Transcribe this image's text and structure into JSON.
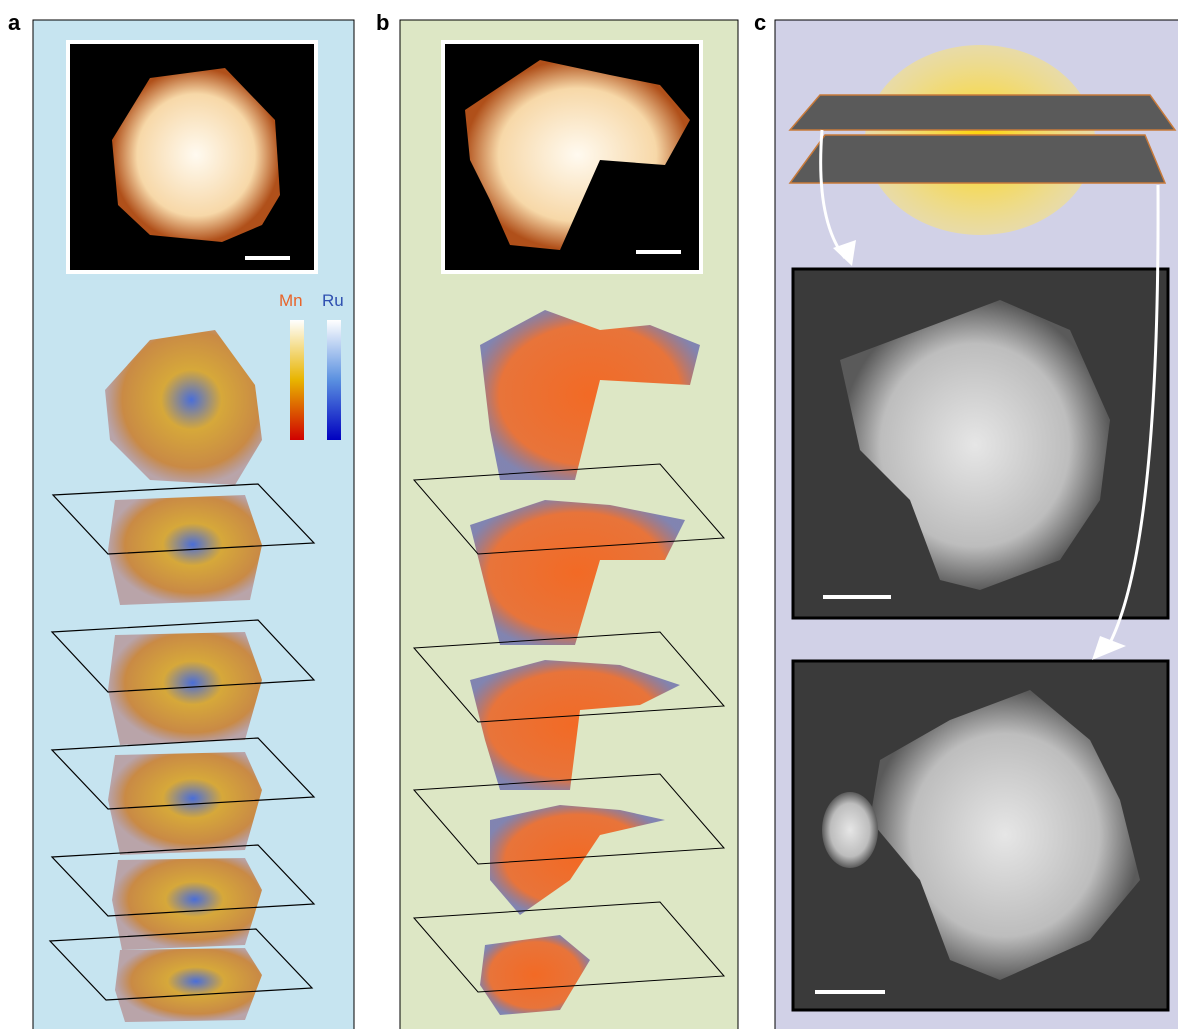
{
  "panel_labels": [
    "a",
    "b",
    "c"
  ],
  "colorbar_labels": [
    "Mn",
    "Ru"
  ]
}
